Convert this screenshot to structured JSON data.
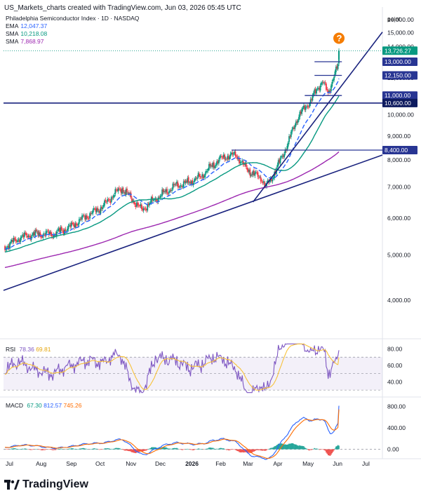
{
  "header": {
    "title": "US_Markets_charts created with TradingView.com, Jun 03, 2026 05:45 UTC"
  },
  "footer": {
    "brand": "TradingView"
  },
  "chart_data": [
    {
      "type": "candlestick",
      "title": "Philadelphia Semiconductor Index · 1D · NASDAQ",
      "axis_unit_label": "point",
      "y_ticks": [
        "16,000.00",
        "15,000.00",
        "14,000.00",
        "12,000.00",
        "11,000.00",
        "10,000.00",
        "9,000.00",
        "8,000.00",
        "7,000.00",
        "6,000.00",
        "5,000.00",
        "4,000.00"
      ],
      "ylim": [
        3400,
        16800
      ],
      "x_ticks": [
        "Jul",
        "Aug",
        "Sep",
        "Oct",
        "Nov",
        "Dec",
        "2026",
        "Feb",
        "Mar",
        "Apr",
        "May",
        "Jun",
        "Jul"
      ],
      "indicators": [
        {
          "name": "EMA",
          "value": "12,047.37",
          "color": "#2962ff"
        },
        {
          "name": "SMA",
          "value": "10,218.08",
          "color": "#089981"
        },
        {
          "name": "SMA",
          "value": "7,868.97",
          "color": "#9c27b0"
        }
      ],
      "price_tags": [
        {
          "label": "13,726.27",
          "value": 13726.27,
          "style": "last"
        },
        {
          "label": "13,000.00",
          "value": 13000,
          "style": "level"
        },
        {
          "label": "12,150.00",
          "value": 12150,
          "style": "level"
        },
        {
          "label": "11,000.00",
          "value": 11000,
          "style": "level"
        },
        {
          "label": "10,600.00",
          "value": 10600,
          "style": "level-dark"
        },
        {
          "label": "8,400.00",
          "value": 8400,
          "style": "level"
        }
      ],
      "horizontal_levels": [
        {
          "value": 13000,
          "from": "late May",
          "to": "Jun"
        },
        {
          "value": 12150,
          "from": "late May",
          "to": "Jun"
        },
        {
          "value": 11000,
          "from": "May",
          "to": "Jun"
        },
        {
          "value": 10600,
          "from": "Jul",
          "to": "Jul (next)"
        },
        {
          "value": 8400,
          "from": "mid Feb",
          "to": "Jul (next)"
        }
      ],
      "trendlines": [
        {
          "from": [
            "Jul",
            4200
          ],
          "to": [
            "Jul (next)",
            8200
          ]
        },
        {
          "from": [
            "Mar",
            6500
          ],
          "to": [
            "Jul (next)",
            15050
          ]
        }
      ],
      "annotation": "?"
    },
    {
      "type": "line",
      "title": "RSI",
      "series": [
        {
          "name": "RSI",
          "value": "78.36",
          "color": "#7e57c2"
        },
        {
          "name": "MA",
          "value": "69.81",
          "color": "#f7c23b"
        }
      ],
      "y_ticks": [
        "80.00",
        "60.00",
        "40.00"
      ],
      "ylim": [
        25,
        88
      ],
      "band": [
        30,
        70
      ]
    },
    {
      "type": "line",
      "title": "MACD",
      "series": [
        {
          "name": "MACD",
          "value": "812.57",
          "color": "#2962ff"
        },
        {
          "name": "Signal",
          "value": "745.26",
          "color": "#ff6d00"
        }
      ],
      "histogram_value": "67.30",
      "y_ticks": [
        "800.00",
        "400.00",
        "0.00"
      ],
      "ylim": [
        -150,
        950
      ]
    }
  ]
}
